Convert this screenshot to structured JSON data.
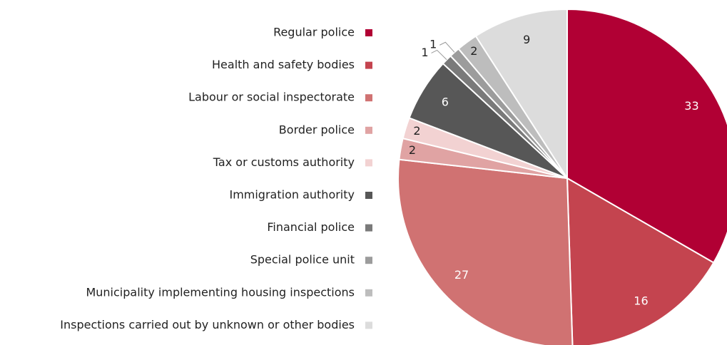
{
  "chart_data": {
    "type": "pie",
    "categories": [
      "Regular police",
      "Health and safety bodies",
      "Labour or social inspectorate",
      "Border police",
      "Tax or customs authority",
      "Immigration authority",
      "Financial police",
      "Special police unit",
      "Municipality implementing housing inspections",
      "Inspections carried out by unknown or other bodies"
    ],
    "values": [
      33,
      16,
      27,
      2,
      2,
      6,
      1,
      1,
      2,
      9
    ],
    "colors": [
      "#b10034",
      "#c4444f",
      "#d07272",
      "#e0a3a3",
      "#f2d2d2",
      "#575757",
      "#7a7a7a",
      "#9c9c9c",
      "#bdbdbd",
      "#dcdcdc"
    ]
  }
}
